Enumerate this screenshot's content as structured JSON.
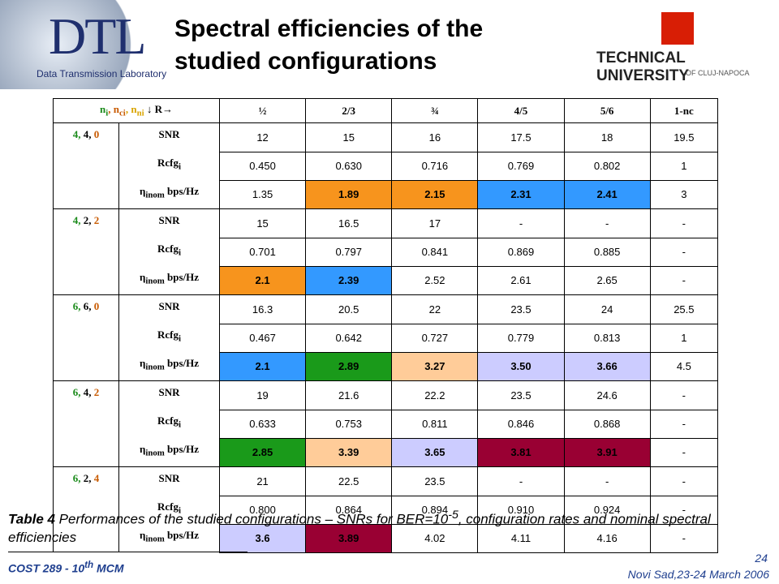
{
  "header": {
    "title": "Spectral efficiencies of the studied configurations",
    "left_logo": {
      "mark": "DTL",
      "caption": "Data Transmission Laboratory"
    },
    "right_logo": {
      "name": "TECHNICAL UNIVERSITY",
      "place": "OF CLUJ-NAPOCA"
    }
  },
  "table": {
    "corner": {
      "p1": "n",
      "s1": "i",
      "p2": ", n",
      "s2": "ci",
      "p3": ", n",
      "s3": "ni",
      "p4": " ↓ R→"
    },
    "columns": [
      "½",
      "2/3",
      "¾",
      "4/5",
      "5/6",
      "1-nc"
    ],
    "metrics": {
      "snr": "SNR",
      "rcfg": "Rcfg",
      "rcfg_sub": "i",
      "eta": "η",
      "eta_sub": "inom",
      "eta_unit": " bps/Hz"
    },
    "groups": [
      {
        "config": [
          "4,",
          "4,",
          "0"
        ],
        "snr": [
          "12",
          "15",
          "16",
          "17.5",
          "18",
          "19.5"
        ],
        "rcfg": [
          "0.450",
          "0.630",
          "0.716",
          "0.769",
          "0.802",
          "1"
        ],
        "eta": [
          "1.35",
          "1.89",
          "2.15",
          "2.31",
          "2.41",
          "3"
        ],
        "eta_colors": [
          null,
          "#f7941d",
          "#f7941d",
          "#3399ff",
          "#3399ff",
          null
        ]
      },
      {
        "config": [
          "4,",
          "2,",
          "2"
        ],
        "snr": [
          "15",
          "16.5",
          "17",
          "-",
          "-",
          "-"
        ],
        "rcfg": [
          "0.701",
          "0.797",
          "0.841",
          "0.869",
          "0.885",
          "-"
        ],
        "eta": [
          "2.1",
          "2.39",
          "2.52",
          "2.61",
          "2.65",
          "-"
        ],
        "eta_colors": [
          "#f7941d",
          "#3399ff",
          null,
          null,
          null,
          null
        ]
      },
      {
        "config": [
          "6,",
          "6,",
          "0"
        ],
        "snr": [
          "16.3",
          "20.5",
          "22",
          "23.5",
          "24",
          "25.5"
        ],
        "rcfg": [
          "0.467",
          "0.642",
          "0.727",
          "0.779",
          "0.813",
          "1"
        ],
        "eta": [
          "2.1",
          "2.89",
          "3.27",
          "3.50",
          "3.66",
          "4.5"
        ],
        "eta_colors": [
          "#3399ff",
          "#1a9a1a",
          "#ffcc99",
          "#ccccff",
          "#ccccff",
          null
        ]
      },
      {
        "config": [
          "6,",
          "4,",
          "2"
        ],
        "snr": [
          "19",
          "21.6",
          "22.2",
          "23.5",
          "24.6",
          "-"
        ],
        "rcfg": [
          "0.633",
          "0.753",
          "0.811",
          "0.846",
          "0.868",
          "-"
        ],
        "eta": [
          "2.85",
          "3.39",
          "3.65",
          "3.81",
          "3.91",
          "-"
        ],
        "eta_colors": [
          "#1a9a1a",
          "#ffcc99",
          "#ccccff",
          "#990033",
          "#990033",
          null
        ]
      },
      {
        "config": [
          "6,",
          "2,",
          "4"
        ],
        "snr": [
          "21",
          "22.5",
          "23.5",
          "-",
          "-",
          "-"
        ],
        "rcfg": [
          "0.800",
          "0.864",
          "0.894",
          "0.910",
          "0.924",
          "-"
        ],
        "eta": [
          "3.6",
          "3.89",
          "4.02",
          "4.11",
          "4.16",
          "-"
        ],
        "eta_colors": [
          "#ccccff",
          "#990033",
          null,
          null,
          null,
          null
        ]
      }
    ]
  },
  "caption": {
    "label": "Table 4",
    "text": " Performances of the studied configurations – SNRs for BER=10",
    "sup": "-5",
    "rest": ", configuration rates and nominal spectral efficiencies"
  },
  "footer": {
    "left": "COST 289 - 10",
    "left_sup": "th",
    "left_rest": " MCM",
    "page": "24",
    "venue": "Novi Sad,23-24  March 2006"
  }
}
